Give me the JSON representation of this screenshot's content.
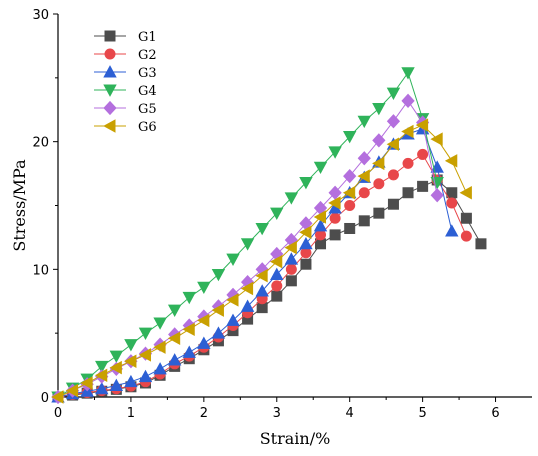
{
  "chart_data": {
    "type": "line",
    "xlabel": "Strain/%",
    "ylabel": "Stress/MPa",
    "xlim": [
      0,
      6.5
    ],
    "ylim": [
      0,
      30
    ],
    "xticks": [
      "0",
      "1",
      "2",
      "3",
      "4",
      "5",
      "6"
    ],
    "yticks": [
      "0",
      "10",
      "20",
      "30"
    ],
    "legend_position": "top-left",
    "grid": false,
    "series": [
      {
        "name": "G1",
        "color": "#4d4d4d",
        "marker": "square",
        "x": [
          0,
          0.2,
          0.4,
          0.6,
          0.8,
          1.0,
          1.2,
          1.4,
          1.6,
          1.8,
          2.0,
          2.2,
          2.4,
          2.6,
          2.8,
          3.0,
          3.2,
          3.4,
          3.6,
          3.8,
          4.0,
          4.2,
          4.4,
          4.6,
          4.8,
          5.0,
          5.2,
          5.4,
          5.6,
          5.8
        ],
        "y": [
          0,
          0.15,
          0.3,
          0.45,
          0.6,
          0.8,
          1.1,
          1.7,
          2.4,
          3.0,
          3.7,
          4.4,
          5.2,
          6.1,
          7.0,
          7.9,
          9.1,
          10.4,
          12.0,
          12.7,
          13.2,
          13.8,
          14.4,
          15.1,
          16.0,
          16.5,
          17.0,
          16.0,
          14.0,
          12.0
        ]
      },
      {
        "name": "G2",
        "color": "#e8474a",
        "marker": "circle",
        "x": [
          0,
          0.2,
          0.4,
          0.6,
          0.8,
          1.0,
          1.2,
          1.4,
          1.6,
          1.8,
          2.0,
          2.2,
          2.4,
          2.6,
          2.8,
          3.0,
          3.2,
          3.4,
          3.6,
          3.8,
          4.0,
          4.2,
          4.4,
          4.6,
          4.8,
          5.0,
          5.2,
          5.4,
          5.6
        ],
        "y": [
          0,
          0.2,
          0.35,
          0.5,
          0.65,
          0.85,
          1.2,
          1.8,
          2.6,
          3.2,
          3.9,
          4.7,
          5.6,
          6.6,
          7.7,
          8.7,
          10.0,
          11.3,
          12.7,
          14.0,
          15.0,
          16.0,
          16.7,
          17.4,
          18.3,
          19.0,
          17.0,
          15.2,
          12.6
        ]
      },
      {
        "name": "G3",
        "color": "#2c5fd4",
        "marker": "triangle-up",
        "x": [
          0,
          0.2,
          0.4,
          0.6,
          0.8,
          1.0,
          1.2,
          1.4,
          1.6,
          1.8,
          2.0,
          2.2,
          2.4,
          2.6,
          2.8,
          3.0,
          3.2,
          3.4,
          3.6,
          3.8,
          4.0,
          4.2,
          4.4,
          4.6,
          4.8,
          5.0,
          5.2,
          5.4
        ],
        "y": [
          0,
          0.25,
          0.45,
          0.65,
          0.9,
          1.2,
          1.6,
          2.2,
          2.9,
          3.5,
          4.2,
          5.0,
          6.0,
          7.1,
          8.3,
          9.6,
          10.8,
          12.0,
          13.4,
          14.8,
          16.0,
          17.2,
          18.4,
          19.8,
          20.6,
          21.0,
          18.0,
          13.0
        ]
      },
      {
        "name": "G4",
        "color": "#2fb35a",
        "marker": "triangle-down",
        "x": [
          0,
          0.2,
          0.4,
          0.6,
          0.8,
          1.0,
          1.2,
          1.4,
          1.6,
          1.8,
          2.0,
          2.2,
          2.4,
          2.6,
          2.8,
          3.0,
          3.2,
          3.4,
          3.6,
          3.8,
          4.0,
          4.2,
          4.4,
          4.6,
          4.8,
          5.0,
          5.2
        ],
        "y": [
          0,
          0.7,
          1.4,
          2.4,
          3.2,
          4.1,
          5.0,
          5.8,
          6.8,
          7.8,
          8.6,
          9.6,
          10.8,
          12.0,
          13.2,
          14.4,
          15.6,
          16.8,
          18.0,
          19.2,
          20.4,
          21.6,
          22.6,
          23.8,
          25.4,
          21.8,
          16.8
        ]
      },
      {
        "name": "G5",
        "color": "#b46fde",
        "marker": "diamond",
        "x": [
          0,
          0.2,
          0.4,
          0.6,
          0.8,
          1.0,
          1.2,
          1.4,
          1.6,
          1.8,
          2.0,
          2.2,
          2.4,
          2.6,
          2.8,
          3.0,
          3.2,
          3.4,
          3.6,
          3.8,
          4.0,
          4.2,
          4.4,
          4.6,
          4.8,
          5.0,
          5.2
        ],
        "y": [
          0,
          0.5,
          1.0,
          1.6,
          2.2,
          2.8,
          3.4,
          4.1,
          4.9,
          5.6,
          6.3,
          7.1,
          8.0,
          9.0,
          10.0,
          11.2,
          12.3,
          13.6,
          14.8,
          16.0,
          17.3,
          18.7,
          20.1,
          21.6,
          23.2,
          21.5,
          15.8
        ]
      },
      {
        "name": "G6",
        "color": "#c9a000",
        "marker": "triangle-left",
        "x": [
          0,
          0.2,
          0.4,
          0.6,
          0.8,
          1.0,
          1.2,
          1.4,
          1.6,
          1.8,
          2.0,
          2.2,
          2.4,
          2.6,
          2.8,
          3.0,
          3.2,
          3.4,
          3.6,
          3.8,
          4.0,
          4.2,
          4.4,
          4.6,
          4.8,
          5.0,
          5.2,
          5.4,
          5.6
        ],
        "y": [
          0,
          0.5,
          1.1,
          1.7,
          2.3,
          2.8,
          3.3,
          3.9,
          4.6,
          5.3,
          6.0,
          6.8,
          7.6,
          8.5,
          9.5,
          10.6,
          11.7,
          12.9,
          14.1,
          15.2,
          16.0,
          17.3,
          18.3,
          19.8,
          20.8,
          21.3,
          20.2,
          18.5,
          16.0
        ]
      }
    ]
  }
}
